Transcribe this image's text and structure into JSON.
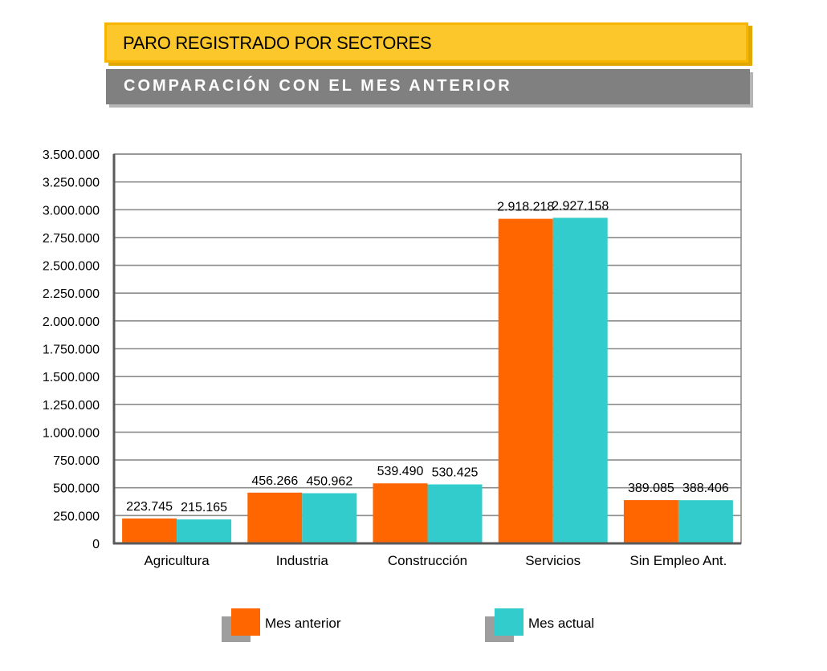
{
  "header": {
    "title": "PARO REGISTRADO POR SECTORES",
    "subtitle": "COMPARACIÓN CON EL MES ANTERIOR"
  },
  "colors": {
    "series_previous": "#ff6600",
    "series_current": "#33cccc",
    "title_banner": "#fcc72a",
    "subtitle_banner": "#808080"
  },
  "chart_data": {
    "type": "bar",
    "title": "",
    "xlabel": "",
    "ylabel": "",
    "categories": [
      "Agricultura",
      "Industria",
      "Construcción",
      "Servicios",
      "Sin Empleo Ant."
    ],
    "series": [
      {
        "name": "Mes anterior",
        "values": [
          223745,
          456266,
          539490,
          2918218,
          389085
        ],
        "labels": [
          "223.745",
          "456.266",
          "539.490",
          "2.918.218",
          "389.085"
        ]
      },
      {
        "name": "Mes actual",
        "values": [
          215165,
          450962,
          530425,
          2927158,
          388406
        ],
        "labels": [
          "215.165",
          "450.962",
          "530.425",
          "2.927.158",
          "388.406"
        ]
      }
    ],
    "ylim": [
      0,
      3500000
    ],
    "yticks": [
      0,
      250000,
      500000,
      750000,
      1000000,
      1250000,
      1500000,
      1750000,
      2000000,
      2250000,
      2500000,
      2750000,
      3000000,
      3250000,
      3500000
    ],
    "ytick_labels": [
      "0",
      "250.000",
      "500.000",
      "750.000",
      "1.000.000",
      "1.250.000",
      "1.500.000",
      "1.750.000",
      "2.000.000",
      "2.250.000",
      "2.500.000",
      "2.750.000",
      "3.000.000",
      "3.250.000",
      "3.500.000"
    ],
    "grid": true,
    "legend_position": "bottom"
  }
}
